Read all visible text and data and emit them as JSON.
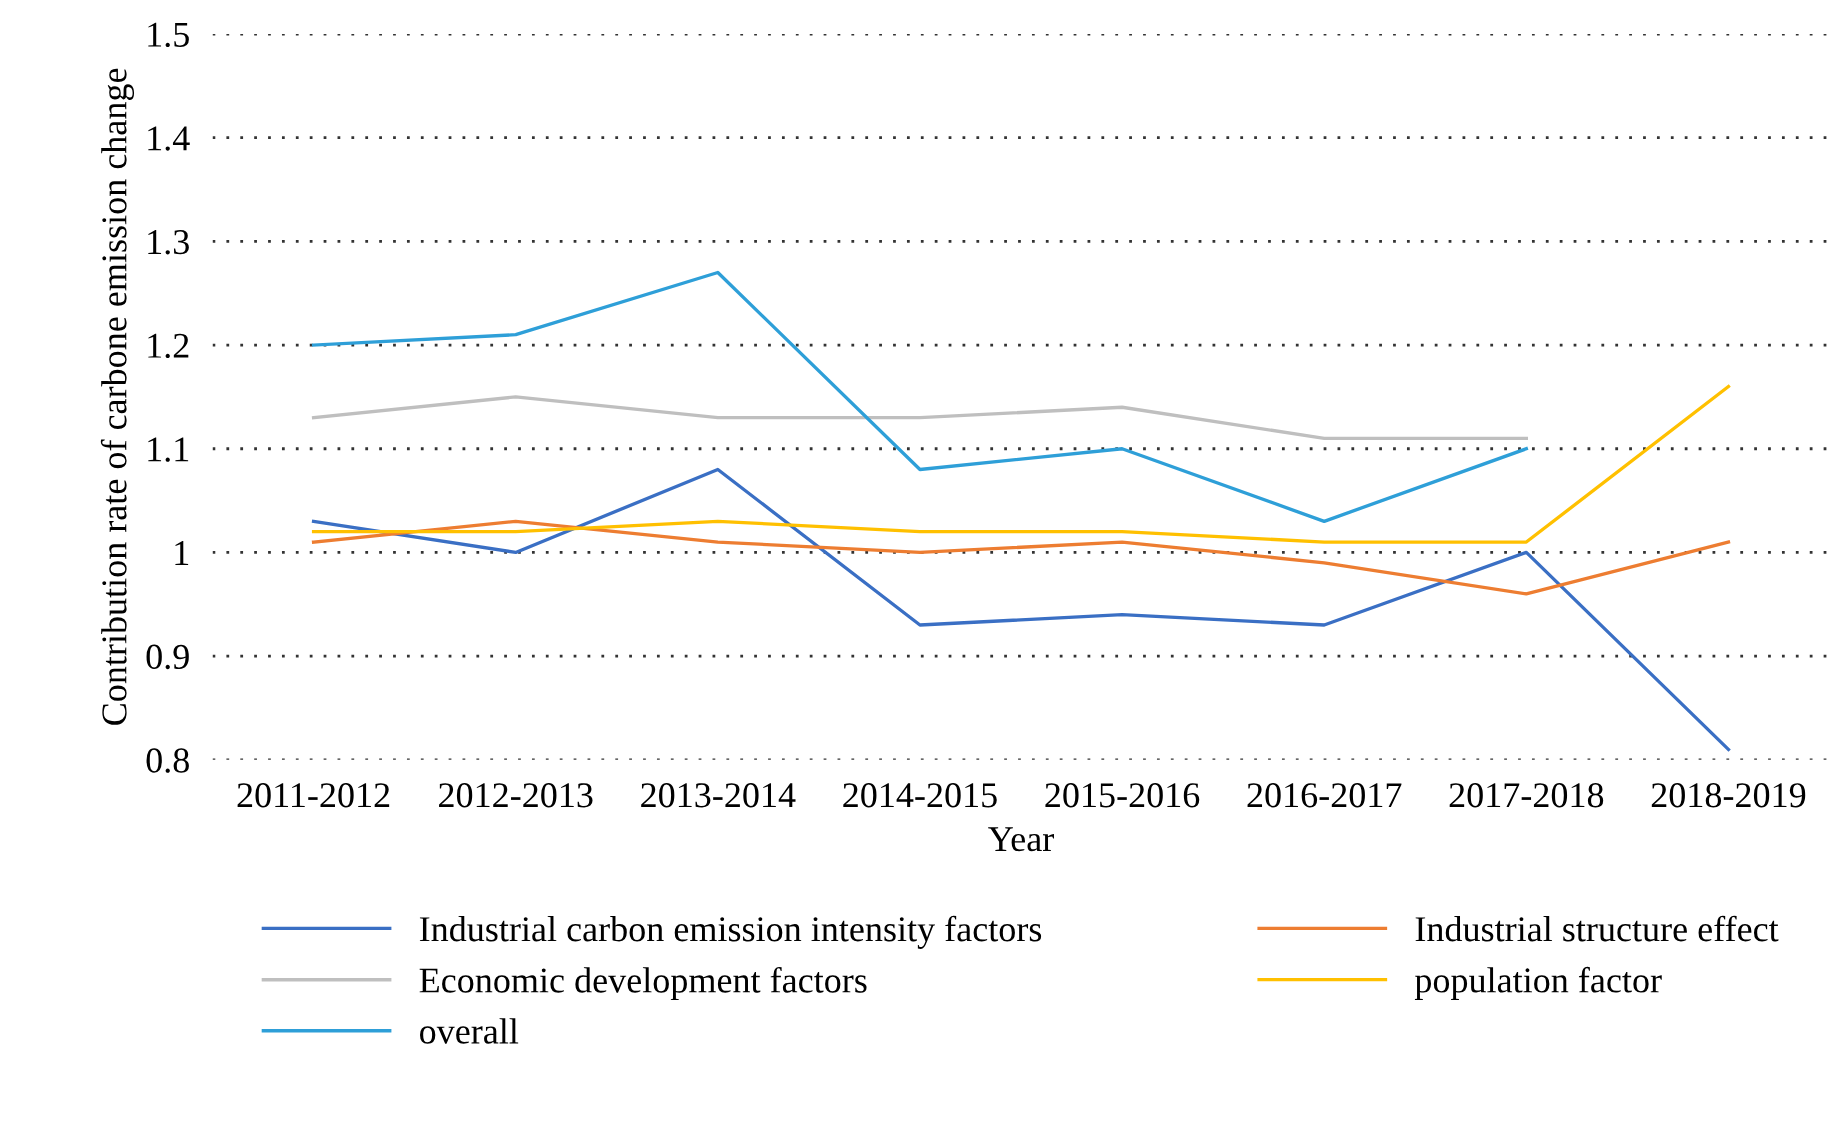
{
  "chart_data": {
    "type": "line",
    "xlabel": "Year",
    "ylabel": "Contribution rate of carbone emission change",
    "categories": [
      "2011-2012",
      "2012-2013",
      "2013-2014",
      "2014-2015",
      "2015-2016",
      "2016-2017",
      "2017-2018",
      "2018-2019"
    ],
    "series": [
      {
        "name": "Industrial carbon emission intensity factors",
        "color": "#3a6fc4",
        "values": [
          1.03,
          1.0,
          1.08,
          0.93,
          0.94,
          0.93,
          1.0,
          0.81
        ]
      },
      {
        "name": "Industrial structure effect",
        "color": "#ed7d31",
        "values": [
          1.01,
          1.03,
          1.01,
          1.0,
          1.01,
          0.99,
          0.96,
          1.01
        ]
      },
      {
        "name": "Economic development factors",
        "color": "#bfbfbf",
        "values": [
          1.13,
          1.15,
          1.13,
          1.13,
          1.14,
          1.11,
          1.11,
          null
        ]
      },
      {
        "name": "population factor",
        "color": "#ffc000",
        "values": [
          1.02,
          1.02,
          1.03,
          1.02,
          1.02,
          1.01,
          1.01,
          1.16
        ]
      },
      {
        "name": "overall",
        "color": "#2e9fd8",
        "values": [
          1.2,
          1.21,
          1.27,
          1.08,
          1.1,
          1.03,
          1.1,
          null
        ]
      }
    ],
    "ylim": [
      0.8,
      1.5
    ],
    "yticks": [
      0.8,
      0.9,
      1,
      1.1,
      1.2,
      1.3,
      1.4,
      1.5
    ],
    "grid": "y",
    "legend": "bottom",
    "marker": "none",
    "line_style": "solid"
  }
}
